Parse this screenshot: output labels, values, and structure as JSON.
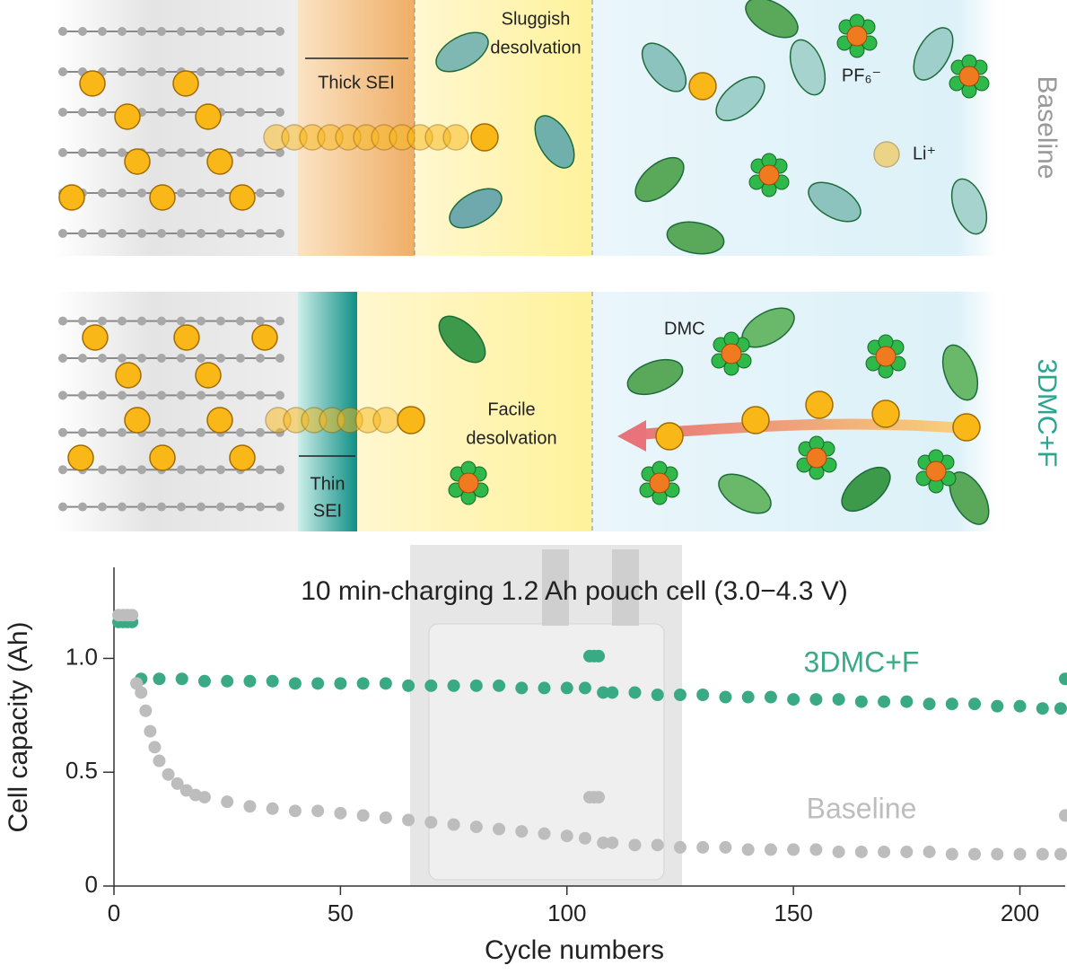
{
  "illustration": {
    "top": {
      "sei": "Thick SEI",
      "desolvation": [
        "Sluggish",
        "desolvation"
      ],
      "anion": "PF₆⁻",
      "ion": "Li⁺",
      "side_label": "Baseline"
    },
    "bottom": {
      "solvent": "DMC",
      "desolvation": [
        "Facile",
        "desolvation"
      ],
      "sei": [
        "Thin",
        "SEI"
      ],
      "side_label": "3DMC+F"
    }
  },
  "chart_data": {
    "type": "scatter",
    "title": "10 min-charging 1.2 Ah pouch cell (3.0−4.3 V)",
    "xlabel": "Cycle numbers",
    "ylabel": "Cell capacity (Ah)",
    "xlim": [
      0,
      210
    ],
    "ylim": [
      0,
      1.4
    ],
    "xticks": [
      0,
      50,
      100,
      150,
      200
    ],
    "yticks": [
      0,
      0.5,
      {
        "value": 1,
        "label": "1.0"
      }
    ],
    "series": [
      {
        "name": "3DMC+F",
        "color": "#3aaa85",
        "x": [
          1,
          2,
          3,
          4,
          5,
          6,
          10,
          15,
          20,
          25,
          30,
          35,
          40,
          45,
          50,
          55,
          60,
          65,
          70,
          75,
          80,
          85,
          90,
          95,
          100,
          104,
          105,
          106,
          107,
          108,
          110,
          115,
          120,
          125,
          130,
          135,
          140,
          145,
          150,
          155,
          160,
          165,
          170,
          175,
          180,
          185,
          190,
          195,
          200,
          205,
          209,
          210
        ],
        "values": [
          1.16,
          1.16,
          1.16,
          1.16,
          0.89,
          0.91,
          0.91,
          0.91,
          0.9,
          0.9,
          0.9,
          0.9,
          0.89,
          0.89,
          0.89,
          0.89,
          0.89,
          0.88,
          0.88,
          0.88,
          0.88,
          0.88,
          0.87,
          0.87,
          0.87,
          0.87,
          1.01,
          1.01,
          1.01,
          0.85,
          0.85,
          0.85,
          0.84,
          0.84,
          0.84,
          0.83,
          0.83,
          0.83,
          0.82,
          0.82,
          0.82,
          0.81,
          0.81,
          0.81,
          0.8,
          0.8,
          0.8,
          0.79,
          0.79,
          0.78,
          0.78,
          0.91
        ]
      },
      {
        "name": "Baseline",
        "color": "#bdbdbd",
        "x": [
          1,
          2,
          3,
          4,
          5,
          6,
          7,
          8,
          9,
          10,
          12,
          14,
          16,
          18,
          20,
          25,
          30,
          35,
          40,
          45,
          50,
          55,
          60,
          65,
          70,
          75,
          80,
          85,
          90,
          95,
          100,
          104,
          105,
          106,
          107,
          108,
          110,
          115,
          120,
          125,
          130,
          135,
          140,
          145,
          150,
          155,
          160,
          165,
          170,
          175,
          180,
          185,
          190,
          195,
          200,
          205,
          209,
          210
        ],
        "values": [
          1.19,
          1.19,
          1.19,
          1.19,
          0.89,
          0.85,
          0.77,
          0.68,
          0.61,
          0.55,
          0.49,
          0.45,
          0.42,
          0.4,
          0.39,
          0.37,
          0.35,
          0.34,
          0.33,
          0.33,
          0.32,
          0.31,
          0.3,
          0.29,
          0.28,
          0.27,
          0.26,
          0.25,
          0.24,
          0.23,
          0.22,
          0.21,
          0.39,
          0.39,
          0.39,
          0.19,
          0.19,
          0.18,
          0.18,
          0.17,
          0.17,
          0.17,
          0.16,
          0.16,
          0.16,
          0.16,
          0.15,
          0.15,
          0.15,
          0.15,
          0.15,
          0.14,
          0.14,
          0.14,
          0.14,
          0.14,
          0.14,
          0.31
        ]
      }
    ]
  }
}
